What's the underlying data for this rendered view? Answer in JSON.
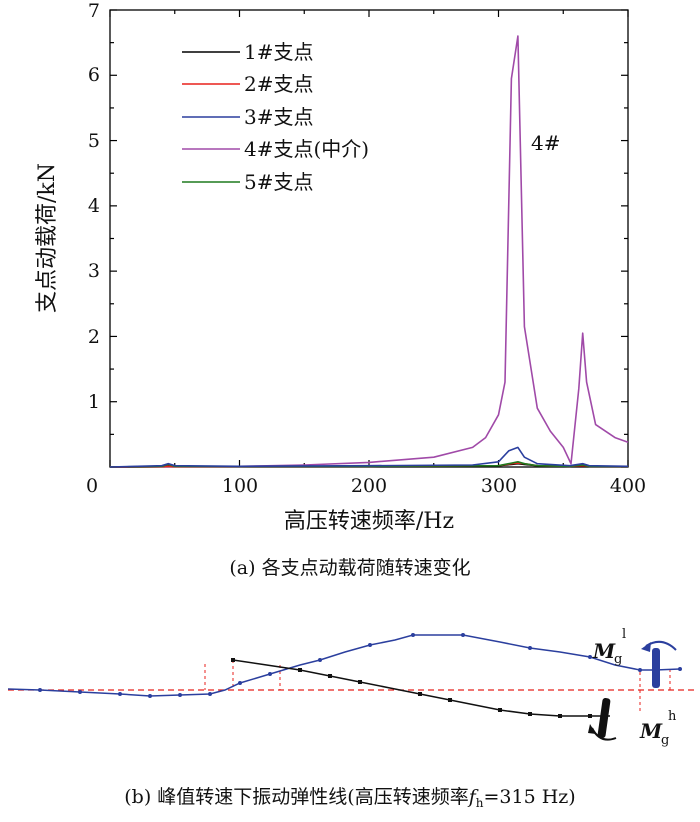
{
  "chart_data": [
    {
      "type": "line",
      "title": "",
      "xlabel": "高压转速频率/Hz",
      "ylabel": "支点动载荷/kN",
      "xlim": [
        0,
        400
      ],
      "ylim": [
        0,
        7
      ],
      "x_ticks": [
        "0",
        "100",
        "200",
        "300",
        "400"
      ],
      "y_ticks": [
        "1",
        "2",
        "3",
        "4",
        "5",
        "6",
        "7"
      ],
      "grid": false,
      "legend_position": "top-left",
      "annotation": "4#",
      "series": [
        {
          "name": "1#支点",
          "color": "#000000",
          "x": [
            0,
            40,
            45,
            50,
            100,
            200,
            300,
            310,
            315,
            320,
            330,
            355,
            365,
            370,
            400
          ],
          "y": [
            0,
            0.005,
            0.02,
            0.005,
            0.01,
            0.01,
            0.02,
            0.04,
            0.05,
            0.04,
            0.02,
            0.01,
            0.02,
            0.01,
            0.01
          ]
        },
        {
          "name": "2#支点",
          "color": "#e8201c",
          "x": [
            0,
            40,
            45,
            50,
            100,
            200,
            300,
            310,
            315,
            320,
            330,
            355,
            365,
            370,
            400
          ],
          "y": [
            0,
            0.005,
            0.01,
            0.005,
            0.01,
            0.01,
            0.02,
            0.05,
            0.06,
            0.05,
            0.02,
            0.01,
            0.02,
            0.01,
            0.01
          ]
        },
        {
          "name": "3#支点",
          "color": "#2b3f9e",
          "x": [
            0,
            40,
            45,
            50,
            100,
            200,
            280,
            300,
            308,
            315,
            320,
            330,
            355,
            365,
            370,
            400
          ],
          "y": [
            0,
            0.02,
            0.05,
            0.02,
            0.01,
            0.02,
            0.03,
            0.08,
            0.25,
            0.3,
            0.15,
            0.05,
            0.02,
            0.05,
            0.02,
            0.01
          ]
        },
        {
          "name": "4#支点(中介)",
          "color": "#a04aa8",
          "x": [
            0,
            100,
            150,
            200,
            250,
            280,
            290,
            300,
            305,
            310,
            315,
            320,
            330,
            340,
            350,
            356,
            362,
            365,
            368,
            375,
            390,
            400
          ],
          "y": [
            0,
            0.01,
            0.03,
            0.07,
            0.15,
            0.3,
            0.45,
            0.8,
            1.3,
            5.95,
            6.6,
            2.15,
            0.9,
            0.55,
            0.3,
            0.05,
            1.2,
            2.05,
            1.3,
            0.65,
            0.45,
            0.38
          ]
        },
        {
          "name": "5#支点",
          "color": "#1f7a1f",
          "x": [
            0,
            40,
            45,
            50,
            100,
            200,
            300,
            310,
            315,
            320,
            330,
            355,
            365,
            370,
            400
          ],
          "y": [
            0,
            0.01,
            0.04,
            0.01,
            0.01,
            0.01,
            0.02,
            0.06,
            0.08,
            0.05,
            0.02,
            0.01,
            0.03,
            0.01,
            0.01
          ]
        }
      ]
    },
    {
      "type": "line",
      "title": "峰值转速下振动弹性线",
      "annotations": {
        "upper_moment": "M",
        "upper_moment_sub": "g",
        "upper_moment_sup": "l",
        "lower_moment": "M",
        "lower_moment_sub": "g",
        "lower_moment_sup": "h"
      },
      "series": [
        {
          "name": "low-pressure-rotor-line",
          "color": "#2b3f9e"
        },
        {
          "name": "high-pressure-rotor-line",
          "color": "#000000"
        }
      ]
    }
  ],
  "captions": {
    "a": "(a) 各支点动载荷随转速变化",
    "b_prefix": "(b) 峰值转速下振动弹性线(高压转速频率",
    "b_var": "f",
    "b_sub": "h",
    "b_suffix": "=315 Hz)"
  }
}
